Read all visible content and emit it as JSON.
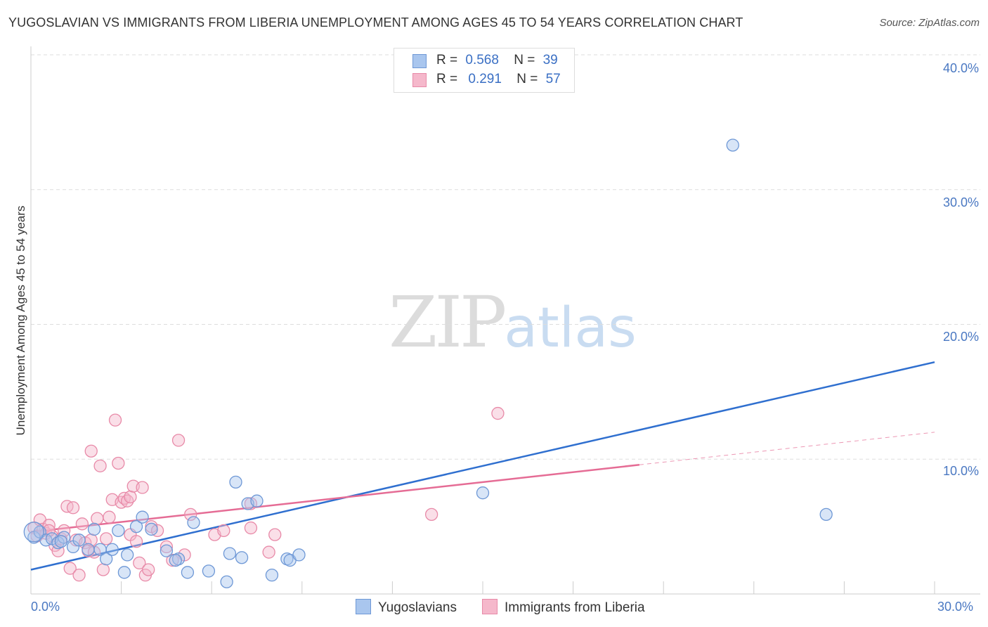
{
  "title": "YUGOSLAVIAN VS IMMIGRANTS FROM LIBERIA UNEMPLOYMENT AMONG AGES 45 TO 54 YEARS CORRELATION CHART",
  "source": "Source: ZipAtlas.com",
  "watermark": {
    "zip": "ZIP",
    "atlas": "atlas"
  },
  "legend": {
    "series1": {
      "r_label": "R =",
      "r_value": "0.568",
      "n_label": "N =",
      "n_value": "39"
    },
    "series2": {
      "r_label": "R =",
      "r_value": "0.291",
      "n_label": "N =",
      "n_value": "57"
    }
  },
  "colors": {
    "blue_fill": "#a9c6ee",
    "blue_stroke": "#6e98d6",
    "blue_line": "#2f6fcf",
    "pink_fill": "#f5b8cb",
    "pink_stroke": "#e88aa8",
    "pink_line": "#e56c95",
    "grid": "#dddddd",
    "tick_text": "#4a78c2"
  },
  "chart_data": {
    "type": "scatter",
    "xlabel": "",
    "ylabel": "Unemployment Among Ages 45 to 54 years",
    "xlim": [
      0,
      30
    ],
    "ylim": [
      0,
      40
    ],
    "x_tick_labels": [
      "0.0%",
      "30.0%"
    ],
    "y_tick_labels": [
      "10.0%",
      "20.0%",
      "30.0%",
      "40.0%"
    ],
    "y_ticks": [
      10,
      20,
      30,
      40
    ],
    "x_minor_ticks": [
      0,
      3,
      6,
      9,
      12,
      15,
      18,
      21,
      24,
      27,
      30
    ],
    "legend_position": "top-center",
    "series": [
      {
        "name": "Yugoslavians",
        "regression": {
          "x": [
            0,
            30
          ],
          "y": [
            1.8,
            17.2
          ],
          "dashed_from": null
        },
        "points": [
          [
            0.1,
            4.2
          ],
          [
            0.3,
            4.6
          ],
          [
            0.5,
            4.0
          ],
          [
            0.7,
            4.1
          ],
          [
            0.9,
            3.8
          ],
          [
            1.1,
            4.2
          ],
          [
            1.4,
            3.5
          ],
          [
            1.6,
            4.0
          ],
          [
            1.9,
            3.3
          ],
          [
            2.1,
            4.8
          ],
          [
            2.3,
            3.3
          ],
          [
            2.5,
            2.6
          ],
          [
            2.7,
            3.3
          ],
          [
            2.9,
            4.7
          ],
          [
            3.1,
            1.6
          ],
          [
            3.2,
            2.9
          ],
          [
            3.5,
            5.0
          ],
          [
            3.7,
            5.7
          ],
          [
            4.0,
            4.8
          ],
          [
            4.5,
            3.2
          ],
          [
            4.9,
            2.6
          ],
          [
            5.2,
            1.6
          ],
          [
            5.4,
            5.3
          ],
          [
            5.9,
            1.7
          ],
          [
            6.5,
            0.9
          ],
          [
            6.6,
            3.0
          ],
          [
            6.8,
            8.3
          ],
          [
            7.0,
            2.7
          ],
          [
            7.2,
            6.7
          ],
          [
            7.5,
            6.9
          ],
          [
            8.0,
            1.4
          ],
          [
            8.5,
            2.6
          ],
          [
            8.6,
            2.5
          ],
          [
            8.9,
            2.9
          ],
          [
            15.0,
            7.5
          ],
          [
            23.3,
            33.3
          ],
          [
            26.4,
            5.9
          ],
          [
            4.8,
            2.5
          ],
          [
            1.0,
            3.9
          ]
        ]
      },
      {
        "name": "Immigrants from Liberia",
        "regression": {
          "x": [
            0,
            30
          ],
          "y": [
            4.6,
            12.0
          ],
          "dashed_from": 20.2
        },
        "points": [
          [
            0.1,
            4.9
          ],
          [
            0.2,
            4.3
          ],
          [
            0.3,
            5.5
          ],
          [
            0.4,
            4.8
          ],
          [
            0.5,
            4.5
          ],
          [
            0.6,
            5.1
          ],
          [
            0.7,
            4.3
          ],
          [
            0.8,
            3.6
          ],
          [
            0.9,
            3.2
          ],
          [
            1.0,
            4.1
          ],
          [
            1.1,
            4.7
          ],
          [
            1.2,
            6.5
          ],
          [
            1.3,
            1.9
          ],
          [
            1.4,
            6.4
          ],
          [
            1.5,
            4.0
          ],
          [
            1.6,
            1.4
          ],
          [
            1.7,
            5.2
          ],
          [
            1.8,
            3.8
          ],
          [
            1.9,
            3.2
          ],
          [
            2.0,
            10.6
          ],
          [
            2.1,
            3.1
          ],
          [
            2.2,
            5.6
          ],
          [
            2.3,
            9.5
          ],
          [
            2.4,
            1.8
          ],
          [
            2.5,
            4.1
          ],
          [
            2.6,
            5.7
          ],
          [
            2.7,
            7.0
          ],
          [
            2.8,
            12.9
          ],
          [
            2.9,
            9.7
          ],
          [
            3.0,
            6.8
          ],
          [
            3.1,
            7.1
          ],
          [
            3.2,
            6.9
          ],
          [
            3.3,
            4.4
          ],
          [
            3.3,
            7.2
          ],
          [
            3.4,
            8.0
          ],
          [
            3.5,
            3.9
          ],
          [
            3.6,
            2.3
          ],
          [
            3.7,
            7.9
          ],
          [
            3.8,
            1.4
          ],
          [
            4.0,
            5.0
          ],
          [
            4.2,
            4.7
          ],
          [
            4.5,
            3.5
          ],
          [
            4.7,
            2.5
          ],
          [
            4.9,
            11.4
          ],
          [
            5.1,
            2.9
          ],
          [
            5.3,
            5.9
          ],
          [
            6.1,
            4.4
          ],
          [
            6.4,
            4.7
          ],
          [
            7.3,
            4.9
          ],
          [
            7.3,
            6.7
          ],
          [
            7.9,
            3.1
          ],
          [
            8.1,
            4.4
          ],
          [
            13.3,
            5.9
          ],
          [
            15.5,
            13.4
          ],
          [
            3.9,
            1.8
          ],
          [
            0.6,
            4.7
          ],
          [
            2.0,
            4.0
          ]
        ]
      }
    ]
  }
}
